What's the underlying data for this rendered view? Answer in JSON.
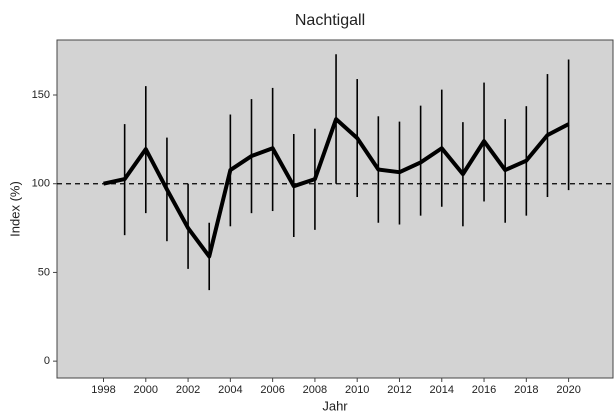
{
  "chart_data": {
    "type": "line",
    "title": "Nachtigall",
    "xlabel": "Jahr",
    "ylabel": "Index (%)",
    "x": [
      1998,
      1999,
      2000,
      2001,
      2002,
      2003,
      2004,
      2005,
      2006,
      2007,
      2008,
      2009,
      2010,
      2011,
      2012,
      2013,
      2014,
      2015,
      2016,
      2017,
      2018,
      2019,
      2020
    ],
    "values": [
      100,
      102.6,
      119.5,
      96.8,
      75,
      59,
      107.7,
      115.6,
      120,
      98.6,
      102.6,
      136.4,
      125.7,
      108,
      106.5,
      112,
      120,
      105.4,
      124,
      107.7,
      113,
      127.4,
      133.6
    ],
    "lower": [
      null,
      71,
      83.4,
      67.6,
      52,
      40,
      76,
      83.4,
      84.6,
      70,
      74,
      100,
      92.5,
      78,
      77,
      82,
      87,
      76,
      90,
      78,
      82,
      92.5,
      96.4
    ],
    "upper": [
      null,
      133.6,
      155,
      126,
      100,
      78,
      139,
      147.7,
      154,
      128,
      131,
      173,
      159,
      138,
      135,
      144,
      153,
      134.7,
      157,
      136.4,
      143.7,
      161.8,
      170
    ],
    "color": "#000000",
    "hline": 100,
    "xlim": [
      1995.8,
      2022.1
    ],
    "xticks": [
      1998,
      2000,
      2002,
      2004,
      2006,
      2008,
      2010,
      2012,
      2014,
      2016,
      2018,
      2020
    ],
    "ylim": [
      -9.5,
      181
    ],
    "yticks": [
      0,
      50,
      100,
      150
    ]
  }
}
